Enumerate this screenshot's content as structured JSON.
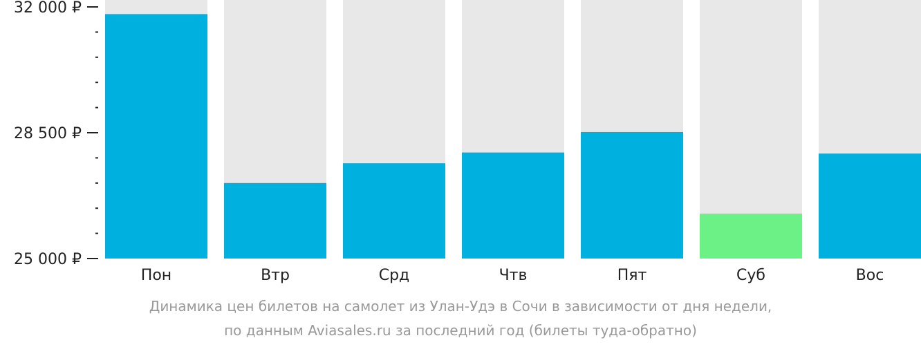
{
  "chart_data": {
    "type": "bar",
    "categories": [
      "Пон",
      "Втр",
      "Срд",
      "Чтв",
      "Пят",
      "Суб",
      "Вос"
    ],
    "values": [
      31800,
      27100,
      27650,
      27950,
      28520,
      26250,
      27920
    ],
    "highlight_index": 5,
    "ylim": [
      25000,
      32000
    ],
    "yticks": [
      {
        "value": 25000,
        "label": "25 000 ₽"
      },
      {
        "value": 28500,
        "label": "28 500 ₽"
      },
      {
        "value": 32000,
        "label": "32 000 ₽"
      }
    ],
    "minor_tick_step": 700,
    "grid": false,
    "colors": {
      "bar": "#00b0de",
      "highlight": "#6cf186",
      "track": "#e8e8e8",
      "axis": "#222222"
    }
  },
  "caption": {
    "line1": "Динамика цен билетов на самолет из Улан-Удэ в Сочи в зависимости от дня недели,",
    "line2": "по данным Aviasales.ru за последний год (билеты туда-обратно)"
  }
}
